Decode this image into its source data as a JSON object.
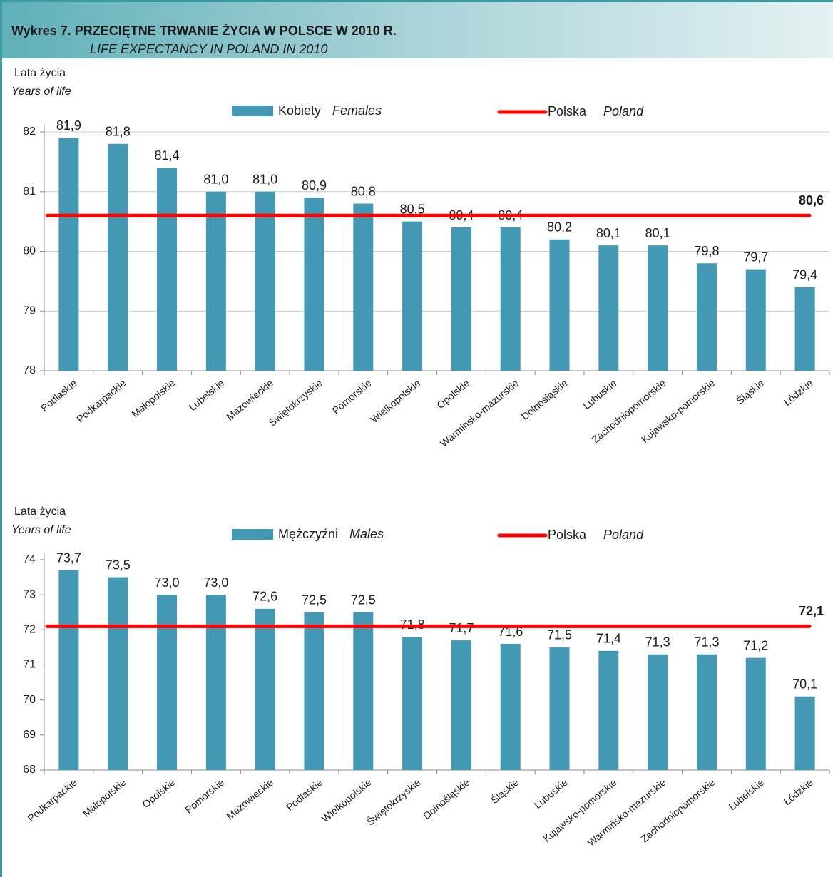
{
  "header": {
    "title": "Wykres 7. PRZECIĘTNE TRWANIE ŻYCIA W POLSCE W 2010 R.",
    "subtitle": "LIFE EXPECTANCY IN POLAND IN 2010"
  },
  "chart_data": [
    {
      "type": "bar",
      "y_label": "Lata życia",
      "y_label_en": "Years of life",
      "categories": [
        "Podlaskie",
        "Podkarpackie",
        "Małopolskie",
        "Lubelskie",
        "Mazowieckie",
        "Świętokrzyskie",
        "Pomorskie",
        "Wielkopolskie",
        "Opolskie",
        "Warmińsko-mazurskie",
        "Dolnośląskie",
        "Lubuskie",
        "Zachodniopomorskie",
        "Kujawsko-pomorskie",
        "Śląskie",
        "Łódzkie"
      ],
      "series": [
        {
          "name": "Kobiety",
          "name_en": "Females",
          "color": "#4399b4",
          "values": [
            81.9,
            81.8,
            81.4,
            81.0,
            81.0,
            80.9,
            80.8,
            80.5,
            80.4,
            80.4,
            80.2,
            80.1,
            80.1,
            79.8,
            79.7,
            79.4
          ],
          "value_labels": [
            "81,9",
            "81,8",
            "81,4",
            "81,0",
            "81,0",
            "80,9",
            "80,8",
            "80,5",
            "80,4",
            "80,4",
            "80,2",
            "80,1",
            "80,1",
            "79,8",
            "79,7",
            "79,4"
          ]
        }
      ],
      "reference": {
        "name": "Polska",
        "name_en": "Poland",
        "value": 80.6,
        "value_label": "80,6",
        "color": "#ff0000"
      },
      "ylim": [
        78,
        82
      ],
      "yticks": [
        78,
        79,
        80,
        81,
        82
      ],
      "grid": true
    },
    {
      "type": "bar",
      "y_label": "Lata życia",
      "y_label_en": "Years of life",
      "categories": [
        "Podkarpackie",
        "Małopolskie",
        "Opolskie",
        "Pomorskie",
        "Mazowieckie",
        "Podlaskie",
        "Wielkopolskie",
        "Świętokrzyskie",
        "Dolnośląskie",
        "Śląskie",
        "Lubuskie",
        "Kujawsko-pomorskie",
        "Warmińsko-mazurskie",
        "Zachodniopomorskie",
        "Lubelskie",
        "Łódzkie"
      ],
      "series": [
        {
          "name": "Mężczyźni",
          "name_en": "Males",
          "color": "#4399b4",
          "values": [
            73.7,
            73.5,
            73.0,
            73.0,
            72.6,
            72.5,
            72.5,
            71.8,
            71.7,
            71.6,
            71.5,
            71.4,
            71.3,
            71.3,
            71.2,
            70.1
          ],
          "value_labels": [
            "73,7",
            "73,5",
            "73,0",
            "73,0",
            "72,6",
            "72,5",
            "72,5",
            "71,8",
            "71,7",
            "71,6",
            "71,5",
            "71,4",
            "71,3",
            "71,3",
            "71,2",
            "70,1"
          ]
        }
      ],
      "reference": {
        "name": "Polska",
        "name_en": "Poland",
        "value": 72.1,
        "value_label": "72,1",
        "color": "#ff0000"
      },
      "ylim": [
        68,
        74
      ],
      "yticks": [
        68,
        69,
        70,
        71,
        72,
        73,
        74
      ],
      "grid": false
    }
  ]
}
